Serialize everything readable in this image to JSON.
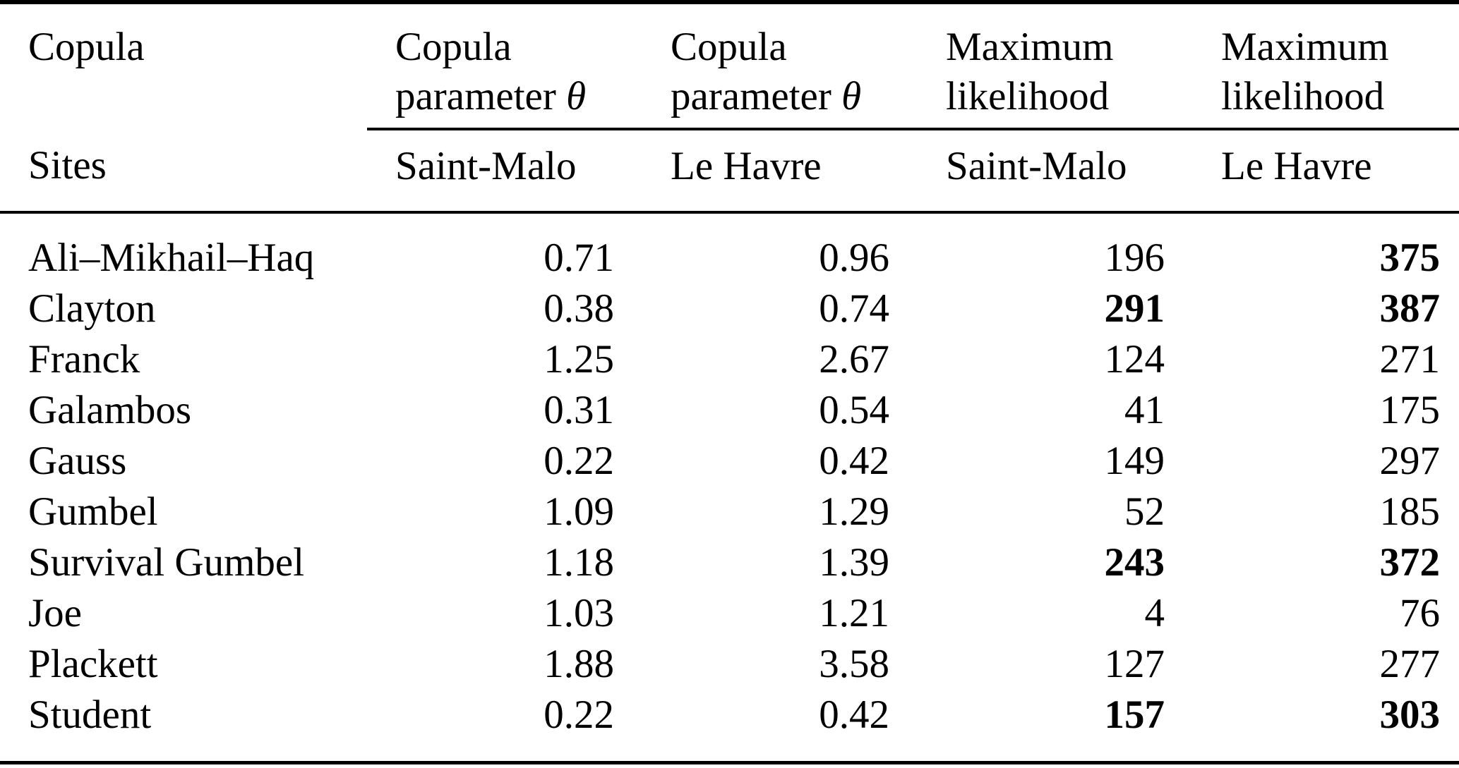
{
  "table": {
    "colors": {
      "text": "#000000",
      "background": "#ffffff",
      "rule": "#000000"
    },
    "header": {
      "corner_top": "Copula",
      "corner_bottom": "Sites",
      "groups": [
        {
          "line1": "Copula",
          "line2": "parameter",
          "symbol": "θ",
          "site": "Saint-Malo"
        },
        {
          "line1": "Copula",
          "line2": "parameter",
          "symbol": "θ",
          "site": "Le Havre"
        },
        {
          "line1": "Maximum",
          "line2": "likelihood",
          "symbol": "",
          "site": "Saint-Malo"
        },
        {
          "line1": "Maximum",
          "line2": "likelihood",
          "symbol": "",
          "site": "Le Havre"
        }
      ]
    },
    "rows": [
      {
        "copula": "Ali–Mikhail–Haq",
        "theta_saint_malo": "0.71",
        "theta_le_havre": "0.96",
        "ml_saint_malo": "196",
        "ml_le_havre": "375",
        "bold_ml_saint_malo": false,
        "bold_ml_le_havre": true
      },
      {
        "copula": "Clayton",
        "theta_saint_malo": "0.38",
        "theta_le_havre": "0.74",
        "ml_saint_malo": "291",
        "ml_le_havre": "387",
        "bold_ml_saint_malo": true,
        "bold_ml_le_havre": true
      },
      {
        "copula": "Franck",
        "theta_saint_malo": "1.25",
        "theta_le_havre": "2.67",
        "ml_saint_malo": "124",
        "ml_le_havre": "271",
        "bold_ml_saint_malo": false,
        "bold_ml_le_havre": false
      },
      {
        "copula": "Galambos",
        "theta_saint_malo": "0.31",
        "theta_le_havre": "0.54",
        "ml_saint_malo": "41",
        "ml_le_havre": "175",
        "bold_ml_saint_malo": false,
        "bold_ml_le_havre": false
      },
      {
        "copula": "Gauss",
        "theta_saint_malo": "0.22",
        "theta_le_havre": "0.42",
        "ml_saint_malo": "149",
        "ml_le_havre": "297",
        "bold_ml_saint_malo": false,
        "bold_ml_le_havre": false
      },
      {
        "copula": "Gumbel",
        "theta_saint_malo": "1.09",
        "theta_le_havre": "1.29",
        "ml_saint_malo": "52",
        "ml_le_havre": "185",
        "bold_ml_saint_malo": false,
        "bold_ml_le_havre": false
      },
      {
        "copula": "Survival Gumbel",
        "theta_saint_malo": "1.18",
        "theta_le_havre": "1.39",
        "ml_saint_malo": "243",
        "ml_le_havre": "372",
        "bold_ml_saint_malo": true,
        "bold_ml_le_havre": true
      },
      {
        "copula": "Joe",
        "theta_saint_malo": "1.03",
        "theta_le_havre": "1.21",
        "ml_saint_malo": "4",
        "ml_le_havre": "76",
        "bold_ml_saint_malo": false,
        "bold_ml_le_havre": false
      },
      {
        "copula": "Plackett",
        "theta_saint_malo": "1.88",
        "theta_le_havre": "3.58",
        "ml_saint_malo": "127",
        "ml_le_havre": "277",
        "bold_ml_saint_malo": false,
        "bold_ml_le_havre": false
      },
      {
        "copula": "Student",
        "theta_saint_malo": "0.22",
        "theta_le_havre": "0.42",
        "ml_saint_malo": "157",
        "ml_le_havre": "303",
        "bold_ml_saint_malo": true,
        "bold_ml_le_havre": true
      }
    ]
  }
}
